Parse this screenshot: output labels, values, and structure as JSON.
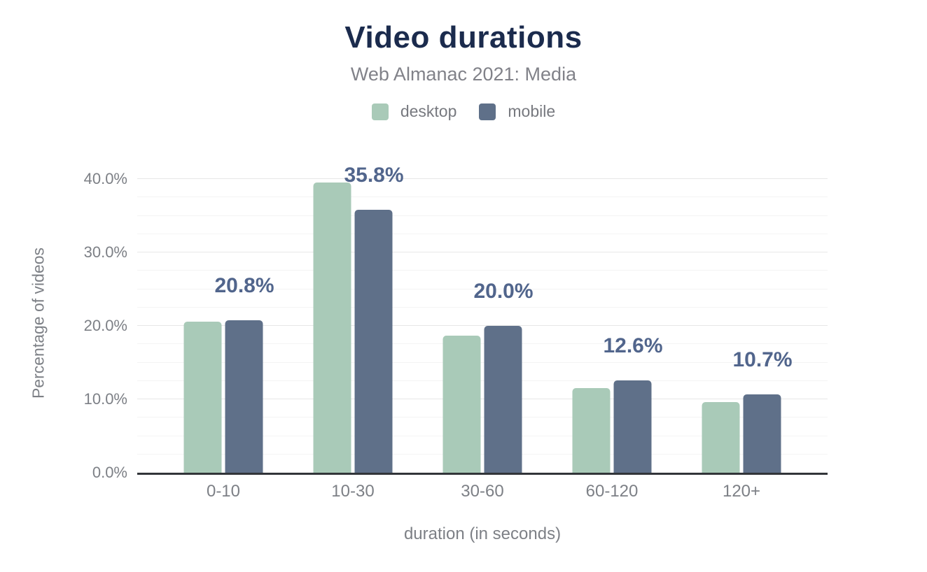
{
  "title": "Video durations",
  "subtitle": "Web Almanac 2021: Media",
  "chart_data": {
    "type": "bar",
    "categories": [
      "0-10",
      "10-30",
      "30-60",
      "60-120",
      "120+"
    ],
    "series": [
      {
        "name": "desktop",
        "color": "#a9cab8",
        "values": [
          20.6,
          39.5,
          18.7,
          11.5,
          9.6
        ]
      },
      {
        "name": "mobile",
        "color": "#5f7089",
        "values": [
          20.8,
          35.8,
          20.0,
          12.6,
          10.7
        ]
      }
    ],
    "data_labels": {
      "on_series": "mobile",
      "texts": [
        "20.8%",
        "35.8%",
        "20.0%",
        "12.6%",
        "10.7%"
      ],
      "color": "#51658c"
    },
    "xlabel": "duration (in seconds)",
    "ylabel": "Percentage of videos",
    "y_ticks": [
      "0.0%",
      "10.0%",
      "20.0%",
      "30.0%",
      "40.0%"
    ],
    "ylim": [
      0,
      42.5
    ],
    "grid": {
      "major_step_pct": 10,
      "minor_step_pct": 2.5
    },
    "legend_position": "top"
  },
  "colors": {
    "title": "#1b2b4d",
    "text_gray": "#7d8086",
    "axis_line": "#323539",
    "grid_major": "#e7e7e7",
    "grid_minor": "#f4f4f4",
    "background": "#ffffff"
  }
}
